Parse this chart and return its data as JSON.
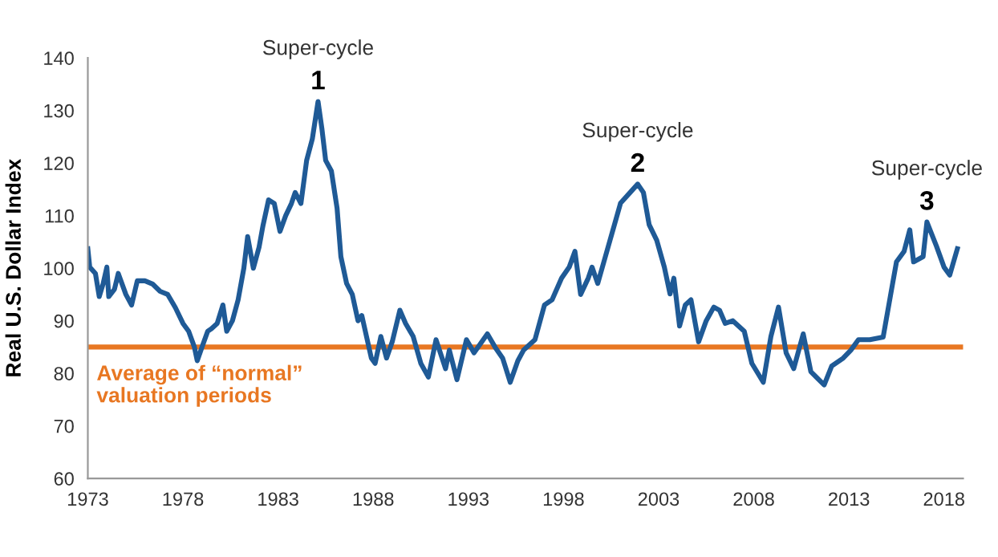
{
  "chart_data": {
    "type": "line",
    "ylabel": "Real U.S. Dollar Index",
    "xlim": [
      1973,
      2019
    ],
    "xticks": [
      1973,
      1978,
      1983,
      1988,
      1993,
      1998,
      2003,
      2008,
      2013,
      2018
    ],
    "ylim": [
      60,
      140
    ],
    "yticks": [
      60,
      70,
      80,
      90,
      100,
      110,
      120,
      130,
      140
    ],
    "grid": false,
    "legend": false,
    "marker": "none",
    "line_style": "solid",
    "ref_lines": [
      {
        "axis": "y",
        "value": 85,
        "label": "Average of “normal”\nvaluation periods",
        "color": "#e87722",
        "line_style": "solid"
      }
    ],
    "annotations": [
      {
        "text": "Super-cycle",
        "x": 1985.1,
        "y": 131.7
      },
      {
        "text": "1",
        "x": 1985.1,
        "y": 131.7
      },
      {
        "text": "Super-cycle",
        "x": 2001.9,
        "y": 116
      },
      {
        "text": "2",
        "x": 2001.9,
        "y": 116
      },
      {
        "text": "Super-cycle",
        "x": 2017.1,
        "y": 108.8
      },
      {
        "text": "3",
        "x": 2017.1,
        "y": 108.8
      }
    ],
    "series": [
      {
        "color": "#1f5a96",
        "x": [
          1973.0,
          1973.1,
          1973.4,
          1973.6,
          1973.8,
          1974.0,
          1974.1,
          1974.4,
          1974.6,
          1975.0,
          1975.3,
          1975.6,
          1976.0,
          1976.4,
          1976.8,
          1977.2,
          1977.6,
          1978.0,
          1978.3,
          1978.6,
          1978.75,
          1979.0,
          1979.3,
          1979.5,
          1979.8,
          1980.1,
          1980.3,
          1980.6,
          1980.9,
          1981.2,
          1981.4,
          1981.7,
          1982.0,
          1982.2,
          1982.5,
          1982.8,
          1983.1,
          1983.4,
          1983.7,
          1983.9,
          1984.2,
          1984.5,
          1984.8,
          1985.1,
          1985.3,
          1985.5,
          1985.8,
          1986.1,
          1986.3,
          1986.6,
          1986.9,
          1987.2,
          1987.4,
          1987.9,
          1988.1,
          1988.4,
          1988.7,
          1989.0,
          1989.4,
          1989.7,
          1990.1,
          1990.5,
          1990.9,
          1991.3,
          1991.8,
          1992.0,
          1992.4,
          1992.9,
          1993.3,
          1994.0,
          1994.4,
          1994.8,
          1995.2,
          1995.6,
          1995.9,
          1996.5,
          1997.0,
          1997.4,
          1997.9,
          1998.3,
          1998.6,
          1998.9,
          1999.3,
          1999.5,
          1999.8,
          2000.2,
          2000.6,
          2001.0,
          2001.5,
          2001.9,
          2002.2,
          2002.5,
          2002.9,
          2003.3,
          2003.6,
          2003.8,
          2004.1,
          2004.4,
          2004.7,
          2005.1,
          2005.5,
          2005.9,
          2006.2,
          2006.5,
          2006.9,
          2007.5,
          2007.9,
          2008.5,
          2008.9,
          2009.3,
          2009.7,
          2010.1,
          2010.6,
          2011.0,
          2011.7,
          2012.1,
          2012.7,
          2013.1,
          2013.5,
          2014.1,
          2014.8,
          2015.2,
          2015.5,
          2015.9,
          2016.2,
          2016.4,
          2016.9,
          2017.1,
          2017.6,
          2018.0,
          2018.3,
          2018.7
        ],
        "values": [
          103.7,
          100.2,
          99,
          94.6,
          97,
          100.2,
          94.6,
          96,
          99,
          95,
          93,
          97.6,
          97.6,
          97,
          95.6,
          95,
          92.5,
          89.5,
          88,
          85,
          82.4,
          85,
          88,
          88.5,
          89.5,
          93,
          88,
          90,
          94,
          100,
          106,
          100,
          104,
          108,
          113,
          112.3,
          107,
          110,
          112.3,
          114.4,
          112.3,
          120.5,
          124.6,
          131.7,
          126.6,
          120.5,
          118.5,
          111.4,
          102.2,
          97.1,
          95,
          90,
          91,
          82.9,
          81.9,
          87,
          82.9,
          86,
          92,
          89.5,
          87,
          81.9,
          79.3,
          86.4,
          80.9,
          84.4,
          78.8,
          86.4,
          83.9,
          87.5,
          85,
          82.9,
          78.3,
          82.4,
          84.4,
          86.4,
          93,
          94,
          98.1,
          100.2,
          103.2,
          95,
          98.1,
          100.2,
          97.1,
          102.2,
          107.3,
          112.4,
          114.4,
          116,
          114.4,
          108.3,
          105.3,
          100.2,
          95.1,
          98.1,
          89,
          93,
          94,
          86,
          90,
          92.6,
          92,
          89.5,
          90,
          88,
          81.9,
          78.3,
          87,
          92.6,
          83.9,
          80.9,
          87.5,
          80.3,
          77.8,
          81.4,
          82.9,
          84.4,
          86.4,
          86.4,
          86.9,
          95.1,
          101.2,
          103.2,
          107.3,
          101.2,
          102.2,
          108.8,
          104.2,
          100.2,
          98.7,
          103.7
        ]
      }
    ]
  }
}
